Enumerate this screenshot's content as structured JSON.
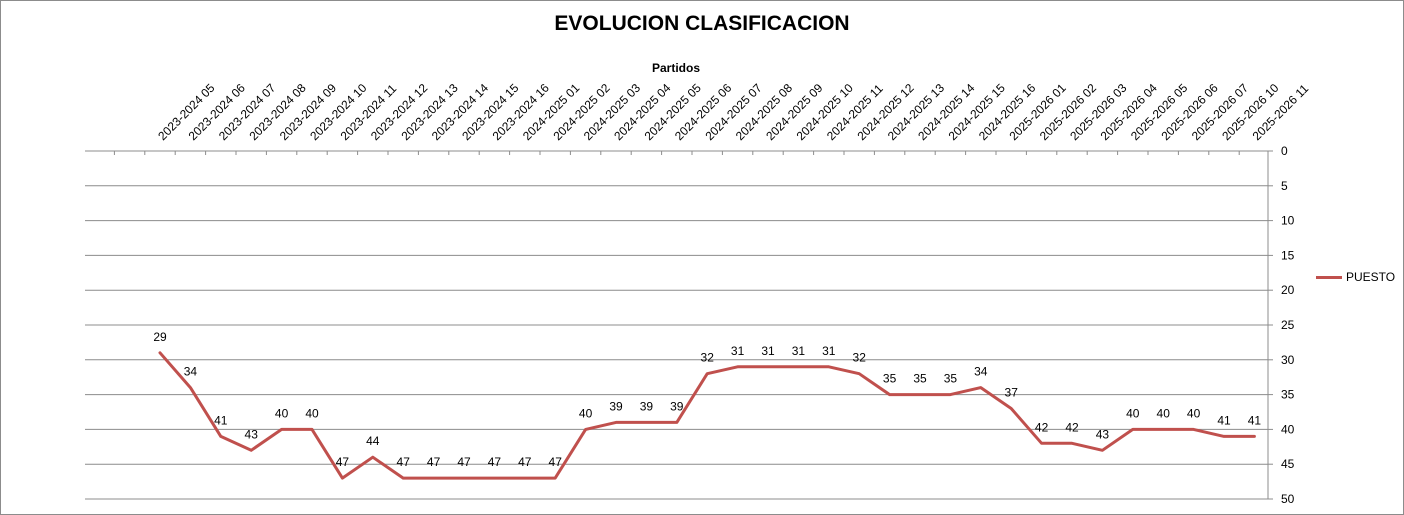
{
  "chart_data": {
    "type": "line",
    "title": "EVOLUCION CLASIFICACION",
    "xlabel": "Partidos",
    "ylabel": "",
    "ylim": [
      0,
      50
    ],
    "y_inverted": true,
    "y_ticks": [
      0,
      5,
      10,
      15,
      20,
      25,
      30,
      35,
      40,
      45,
      50
    ],
    "y_axis_side": "right",
    "x_axis_position": "top",
    "grid": true,
    "legend_position": "right",
    "categories": [
      "2023-2024 05",
      "2023-2024 06",
      "2023-2024 07",
      "2023-2024 08",
      "2023-2024 09",
      "2023-2024 10",
      "2023-2024 11",
      "2023-2024 12",
      "2023-2024 13",
      "2023-2024 14",
      "2023-2024 15",
      "2023-2024 16",
      "2024-2025 01",
      "2024-2025 02",
      "2024-2025 03",
      "2024-2025 04",
      "2024-2025 05",
      "2024-2025 06",
      "2024-2025 07",
      "2024-2025 08",
      "2024-2025 09",
      "2024-2025 10",
      "2024-2025 11",
      "2024-2025 12",
      "2024-2025 13",
      "2024-2025 14",
      "2024-2025 15",
      "2024-2025 16",
      "2025-2026 01",
      "2025-2026 02",
      "2025-2026 03",
      "2025-2026 04",
      "2025-2026 05",
      "2025-2026 06",
      "2025-2026 07",
      "2025-2026 10",
      "2025-2026 11"
    ],
    "series": [
      {
        "name": "PUESTO",
        "color": "#c0504d",
        "values": [
          29,
          34,
          41,
          43,
          40,
          40,
          47,
          44,
          47,
          47,
          47,
          47,
          47,
          47,
          40,
          39,
          39,
          39,
          32,
          31,
          31,
          31,
          31,
          32,
          35,
          35,
          35,
          34,
          37,
          42,
          42,
          43,
          40,
          40,
          40,
          41,
          41
        ]
      }
    ]
  }
}
